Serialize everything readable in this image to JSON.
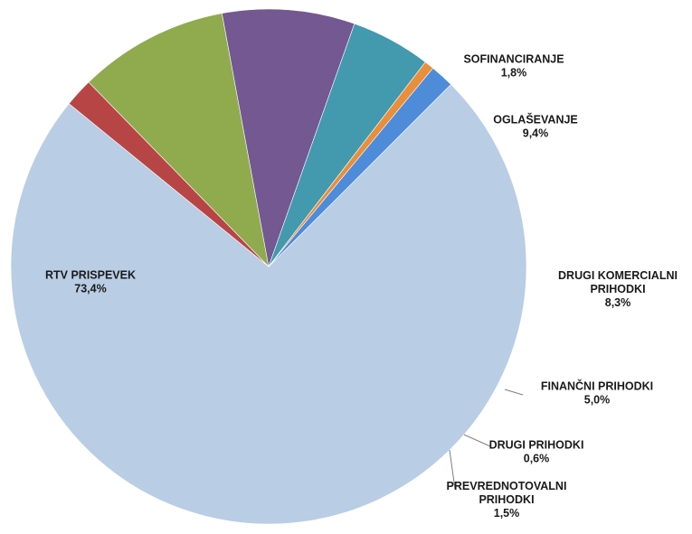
{
  "chart_data": {
    "type": "pie",
    "title": "",
    "legend": "none",
    "slices": [
      {
        "name": "RTV PRISPEVEK",
        "label_lines": [
          "RTV PRISPEVEK"
        ],
        "value": 73.4,
        "value_label": "73,4%",
        "color": "#B9CDE5"
      },
      {
        "name": "SOFINANCIRANJE",
        "label_lines": [
          "SOFINANCIRANJE"
        ],
        "value": 1.8,
        "value_label": "1,8%",
        "color": "#B84545"
      },
      {
        "name": "OGLAŠEVANJE",
        "label_lines": [
          "OGLAŠEVANJE"
        ],
        "value": 9.4,
        "value_label": "9,4%",
        "color": "#8FAB4E"
      },
      {
        "name": "DRUGI KOMERCIALNI PRIHODKI",
        "label_lines": [
          "DRUGI KOMERCIALNI",
          "PRIHODKI"
        ],
        "value": 8.3,
        "value_label": "8,3%",
        "color": "#735891"
      },
      {
        "name": "FINANČNI PRIHODKI",
        "label_lines": [
          "FINANČNI PRIHODKI"
        ],
        "value": 5.0,
        "value_label": "5,0%",
        "color": "#4399AE"
      },
      {
        "name": "DRUGI PRIHODKI",
        "label_lines": [
          "DRUGI PRIHODKI"
        ],
        "value": 0.6,
        "value_label": "0,6%",
        "color": "#E98E3A"
      },
      {
        "name": "PREVREDNOTOVALNI PRIHODKI",
        "label_lines": [
          "PREVREDNOTOVALNI",
          "PRIHODKI"
        ],
        "value": 1.5,
        "value_label": "1,5%",
        "color": "#4E8CDA"
      }
    ]
  }
}
